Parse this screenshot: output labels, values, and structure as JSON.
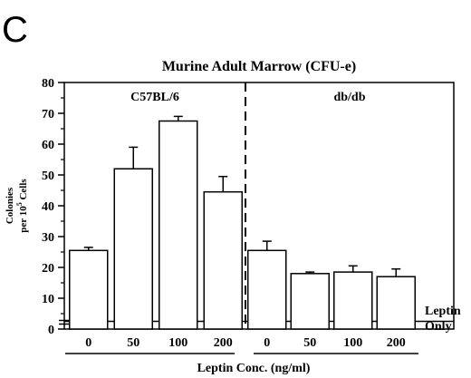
{
  "panel_letter": "C",
  "chart_data": {
    "type": "bar",
    "title": "Murine Adult Marrow (CFU-e)",
    "ylabel_line1": "Colonies",
    "ylabel_line2_prefix": "per 10",
    "ylabel_line2_sup": "5",
    "ylabel_line2_suffix": " Cells",
    "xlabel": "Leptin Conc. (ng/ml)",
    "ylim": [
      0,
      80
    ],
    "yticks": [
      "0",
      "10",
      "20",
      "30",
      "40",
      "50",
      "60",
      "70",
      "80"
    ],
    "groups": [
      {
        "name": "C57BL/6",
        "categories": [
          "0",
          "50",
          "100",
          "200"
        ],
        "values": [
          25.5,
          52,
          67.5,
          44.5
        ],
        "errors": [
          1,
          7,
          1.5,
          5
        ]
      },
      {
        "name": "db/db",
        "categories": [
          "0",
          "50",
          "100",
          "200"
        ],
        "values": [
          25.5,
          18,
          18.5,
          17
        ],
        "errors": [
          3,
          0.5,
          2,
          2.5
        ]
      }
    ],
    "baseline_label_line1": "Leptin",
    "baseline_label_line2": "Only",
    "baseline_value": 2.5,
    "grid": false,
    "divider": "dashed"
  }
}
